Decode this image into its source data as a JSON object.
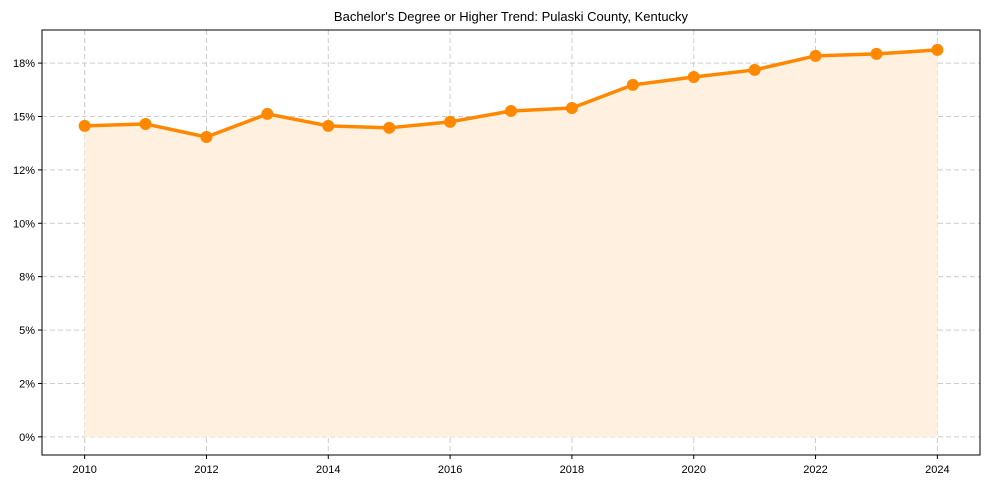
{
  "chart_data": {
    "type": "line",
    "title": "Bachelor's Degree or Higher Trend: Pulaski County, Kentucky",
    "xlabel": "",
    "ylabel": "",
    "x": [
      2010,
      2011,
      2012,
      2013,
      2014,
      2015,
      2016,
      2017,
      2018,
      2019,
      2020,
      2021,
      2022,
      2023,
      2024
    ],
    "series": [
      {
        "name": "Bachelor's Degree or Higher",
        "values": [
          14.56,
          14.65,
          14.04,
          15.12,
          14.56,
          14.47,
          14.75,
          15.26,
          15.4,
          16.48,
          16.85,
          17.18,
          17.84,
          17.93,
          18.12
        ],
        "color": "#FF8800"
      }
    ],
    "xticks": [
      2010,
      2012,
      2014,
      2016,
      2018,
      2020,
      2022,
      2024
    ],
    "xtick_labels": [
      "2010",
      "2012",
      "2014",
      "2016",
      "2018",
      "2020",
      "2022",
      "2024"
    ],
    "yticks": [
      0,
      2.5,
      5,
      7.5,
      10,
      12.5,
      15,
      17.5
    ],
    "ytick_labels": [
      "0%",
      "2%",
      "5%",
      "8%",
      "10%",
      "12%",
      "15%",
      "18%"
    ],
    "xlim": [
      2009.3,
      2024.7
    ],
    "ylim": [
      -0.85,
      19.05
    ],
    "grid": true,
    "fill_color": "#FFF0E0"
  }
}
